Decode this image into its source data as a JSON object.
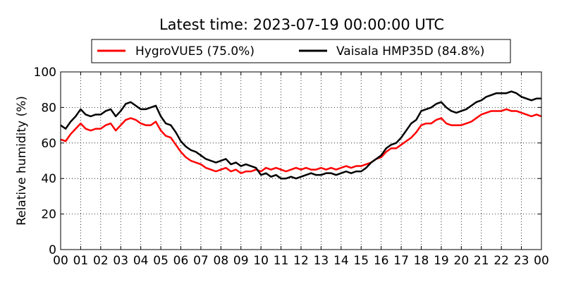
{
  "chart_data": {
    "type": "line",
    "title": "Latest time: 2023-07-19 00:00:00 UTC",
    "xlabel": "",
    "ylabel": "Relative humidity (%)",
    "xlim": [
      0,
      24
    ],
    "ylim": [
      0,
      100
    ],
    "grid": true,
    "legend_position": "top",
    "x_tick_labels": [
      "00",
      "01",
      "02",
      "03",
      "04",
      "05",
      "06",
      "07",
      "08",
      "09",
      "10",
      "11",
      "12",
      "13",
      "14",
      "15",
      "16",
      "17",
      "18",
      "19",
      "20",
      "21",
      "22",
      "23",
      "00"
    ],
    "y_ticks": [
      0,
      20,
      40,
      60,
      80,
      100
    ],
    "series": [
      {
        "name": "HygroVUE5 (75.0%)",
        "color": "#ff0000",
        "x": [
          0,
          0.25,
          0.5,
          0.75,
          1,
          1.25,
          1.5,
          1.75,
          2,
          2.25,
          2.5,
          2.75,
          3,
          3.25,
          3.5,
          3.75,
          4,
          4.25,
          4.5,
          4.75,
          5,
          5.25,
          5.5,
          5.75,
          6,
          6.25,
          6.5,
          6.75,
          7,
          7.25,
          7.5,
          7.75,
          8,
          8.25,
          8.5,
          8.75,
          9,
          9.25,
          9.5,
          9.75,
          10,
          10.25,
          10.5,
          10.75,
          11,
          11.25,
          11.5,
          11.75,
          12,
          12.25,
          12.5,
          12.75,
          13,
          13.25,
          13.5,
          13.75,
          14,
          14.25,
          14.5,
          14.75,
          15,
          15.25,
          15.5,
          15.75,
          16,
          16.25,
          16.5,
          16.75,
          17,
          17.25,
          17.5,
          17.75,
          18,
          18.25,
          18.5,
          18.75,
          19,
          19.25,
          19.5,
          19.75,
          20,
          20.25,
          20.5,
          20.75,
          21,
          21.25,
          21.5,
          21.75,
          22,
          22.25,
          22.5,
          22.75,
          23,
          23.25,
          23.5,
          23.75,
          24
        ],
        "values": [
          62,
          61,
          65,
          68,
          71,
          68,
          67,
          68,
          68,
          70,
          71,
          67,
          70,
          73,
          74,
          73,
          71,
          70,
          70,
          72,
          67,
          64,
          63,
          59,
          55,
          52,
          50,
          49,
          48,
          46,
          45,
          44,
          45,
          46,
          44,
          45,
          43,
          44,
          44,
          45,
          44,
          46,
          45,
          46,
          45,
          44,
          45,
          46,
          45,
          46,
          45,
          45,
          46,
          45,
          46,
          45,
          46,
          47,
          46,
          47,
          47,
          48,
          49,
          51,
          52,
          55,
          57,
          57,
          59,
          61,
          63,
          66,
          70,
          71,
          71,
          73,
          74,
          71,
          70,
          70,
          70,
          71,
          72,
          74,
          76,
          77,
          78,
          78,
          78,
          79,
          78,
          78,
          77,
          76,
          75,
          76,
          75
        ]
      },
      {
        "name": "Vaisala HMP35D (84.8%)",
        "color": "#000000",
        "x": [
          0,
          0.25,
          0.5,
          0.75,
          1,
          1.25,
          1.5,
          1.75,
          2,
          2.25,
          2.5,
          2.75,
          3,
          3.25,
          3.5,
          3.75,
          4,
          4.25,
          4.5,
          4.75,
          5,
          5.25,
          5.5,
          5.75,
          6,
          6.25,
          6.5,
          6.75,
          7,
          7.25,
          7.5,
          7.75,
          8,
          8.25,
          8.5,
          8.75,
          9,
          9.25,
          9.5,
          9.75,
          10,
          10.25,
          10.5,
          10.75,
          11,
          11.25,
          11.5,
          11.75,
          12,
          12.25,
          12.5,
          12.75,
          13,
          13.25,
          13.5,
          13.75,
          14,
          14.25,
          14.5,
          14.75,
          15,
          15.25,
          15.5,
          15.75,
          16,
          16.25,
          16.5,
          16.75,
          17,
          17.25,
          17.5,
          17.75,
          18,
          18.25,
          18.5,
          18.75,
          19,
          19.25,
          19.5,
          19.75,
          20,
          20.25,
          20.5,
          20.75,
          21,
          21.25,
          21.5,
          21.75,
          22,
          22.25,
          22.5,
          22.75,
          23,
          23.25,
          23.5,
          23.75,
          24
        ],
        "values": [
          70,
          68,
          72,
          75,
          79,
          76,
          75,
          76,
          76,
          78,
          79,
          75,
          78,
          82,
          83,
          81,
          79,
          79,
          80,
          81,
          75,
          71,
          70,
          66,
          61,
          58,
          56,
          55,
          53,
          51,
          50,
          49,
          50,
          51,
          48,
          49,
          47,
          48,
          47,
          46,
          42,
          43,
          41,
          42,
          40,
          40,
          41,
          40,
          41,
          42,
          43,
          42,
          42,
          43,
          43,
          42,
          43,
          44,
          43,
          44,
          44,
          46,
          49,
          51,
          53,
          57,
          59,
          60,
          63,
          67,
          71,
          73,
          78,
          79,
          80,
          82,
          83,
          80,
          78,
          77,
          78,
          79,
          81,
          83,
          84,
          86,
          87,
          88,
          88,
          88,
          89,
          88,
          86,
          85,
          84,
          85,
          85
        ]
      }
    ]
  }
}
